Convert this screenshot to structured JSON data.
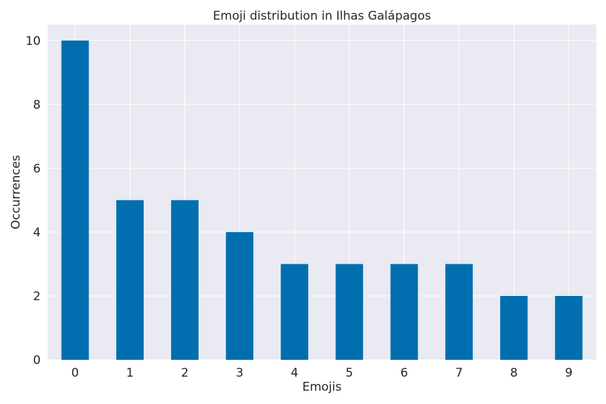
{
  "chart_data": {
    "type": "bar",
    "title": "Emoji distribution in Ilhas Galápagos",
    "xlabel": "Emojis",
    "ylabel": "Occurrences",
    "categories": [
      "0",
      "1",
      "2",
      "3",
      "4",
      "5",
      "6",
      "7",
      "8",
      "9"
    ],
    "values": [
      10,
      5,
      5,
      4,
      3,
      3,
      3,
      3,
      2,
      2
    ],
    "ylim": [
      0,
      10.5
    ],
    "yticks": [
      "0",
      "2",
      "4",
      "6",
      "8",
      "10"
    ],
    "grid": true,
    "legend": "none",
    "colors": {
      "bar": "#006EAF",
      "plot_background": "#E9EAF2",
      "grid": "#FFFFFF",
      "text": "#262626"
    }
  }
}
